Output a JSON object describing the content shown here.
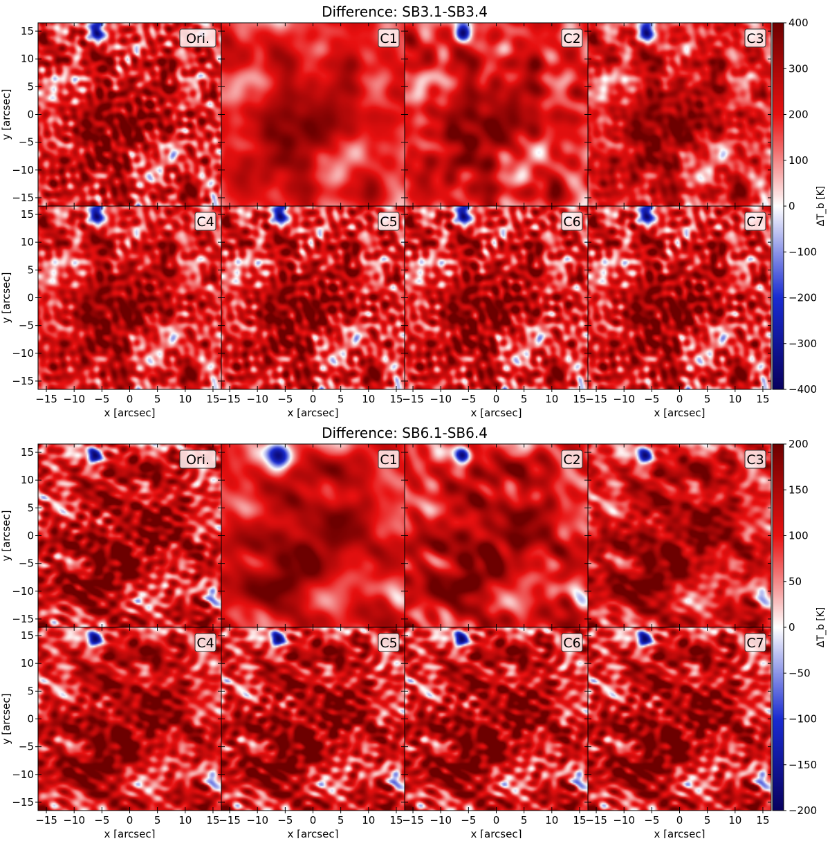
{
  "chart_data": [
    {
      "type": "heatmap",
      "title": "Difference: SB3.1-SB3.4",
      "panels": [
        "Ori.",
        "C1",
        "C2",
        "C3",
        "C4",
        "C5",
        "C6",
        "C7"
      ],
      "xlabel": "x [arcsec]",
      "ylabel": "y [arcsec]",
      "xlim": [
        -16.5,
        16.5
      ],
      "ylim": [
        -16.5,
        16.5
      ],
      "x_ticks": [
        -15,
        -10,
        -5,
        0,
        5,
        10,
        15
      ],
      "y_ticks": [
        -15,
        -10,
        -5,
        0,
        5,
        10,
        15
      ],
      "colorbar": {
        "label": "ΔT_b [K]",
        "range": [
          -400,
          400
        ],
        "ticks": [
          -400,
          -300,
          -200,
          -100,
          0,
          100,
          200,
          300,
          400
        ],
        "colormap": [
          "#08005e",
          "#1a2bd0",
          "#ffffff",
          "#e81010",
          "#6e0000"
        ]
      }
    },
    {
      "type": "heatmap",
      "title": "Difference: SB6.1-SB6.4",
      "panels": [
        "Ori.",
        "C1",
        "C2",
        "C3",
        "C4",
        "C5",
        "C6",
        "C7"
      ],
      "xlabel": "x [arcsec]",
      "ylabel": "y [arcsec]",
      "xlim": [
        -16.5,
        16.5
      ],
      "ylim": [
        -16.5,
        16.5
      ],
      "x_ticks": [
        -15,
        -10,
        -5,
        0,
        5,
        10,
        15
      ],
      "y_ticks": [
        -15,
        -10,
        -5,
        0,
        5,
        10,
        15
      ],
      "colorbar": {
        "label": "ΔT_b [K]",
        "range": [
          -200,
          200
        ],
        "ticks": [
          -200,
          -150,
          -100,
          -50,
          0,
          50,
          100,
          150,
          200
        ],
        "colormap": [
          "#08005e",
          "#1a2bd0",
          "#ffffff",
          "#e81010",
          "#6e0000"
        ]
      }
    }
  ]
}
